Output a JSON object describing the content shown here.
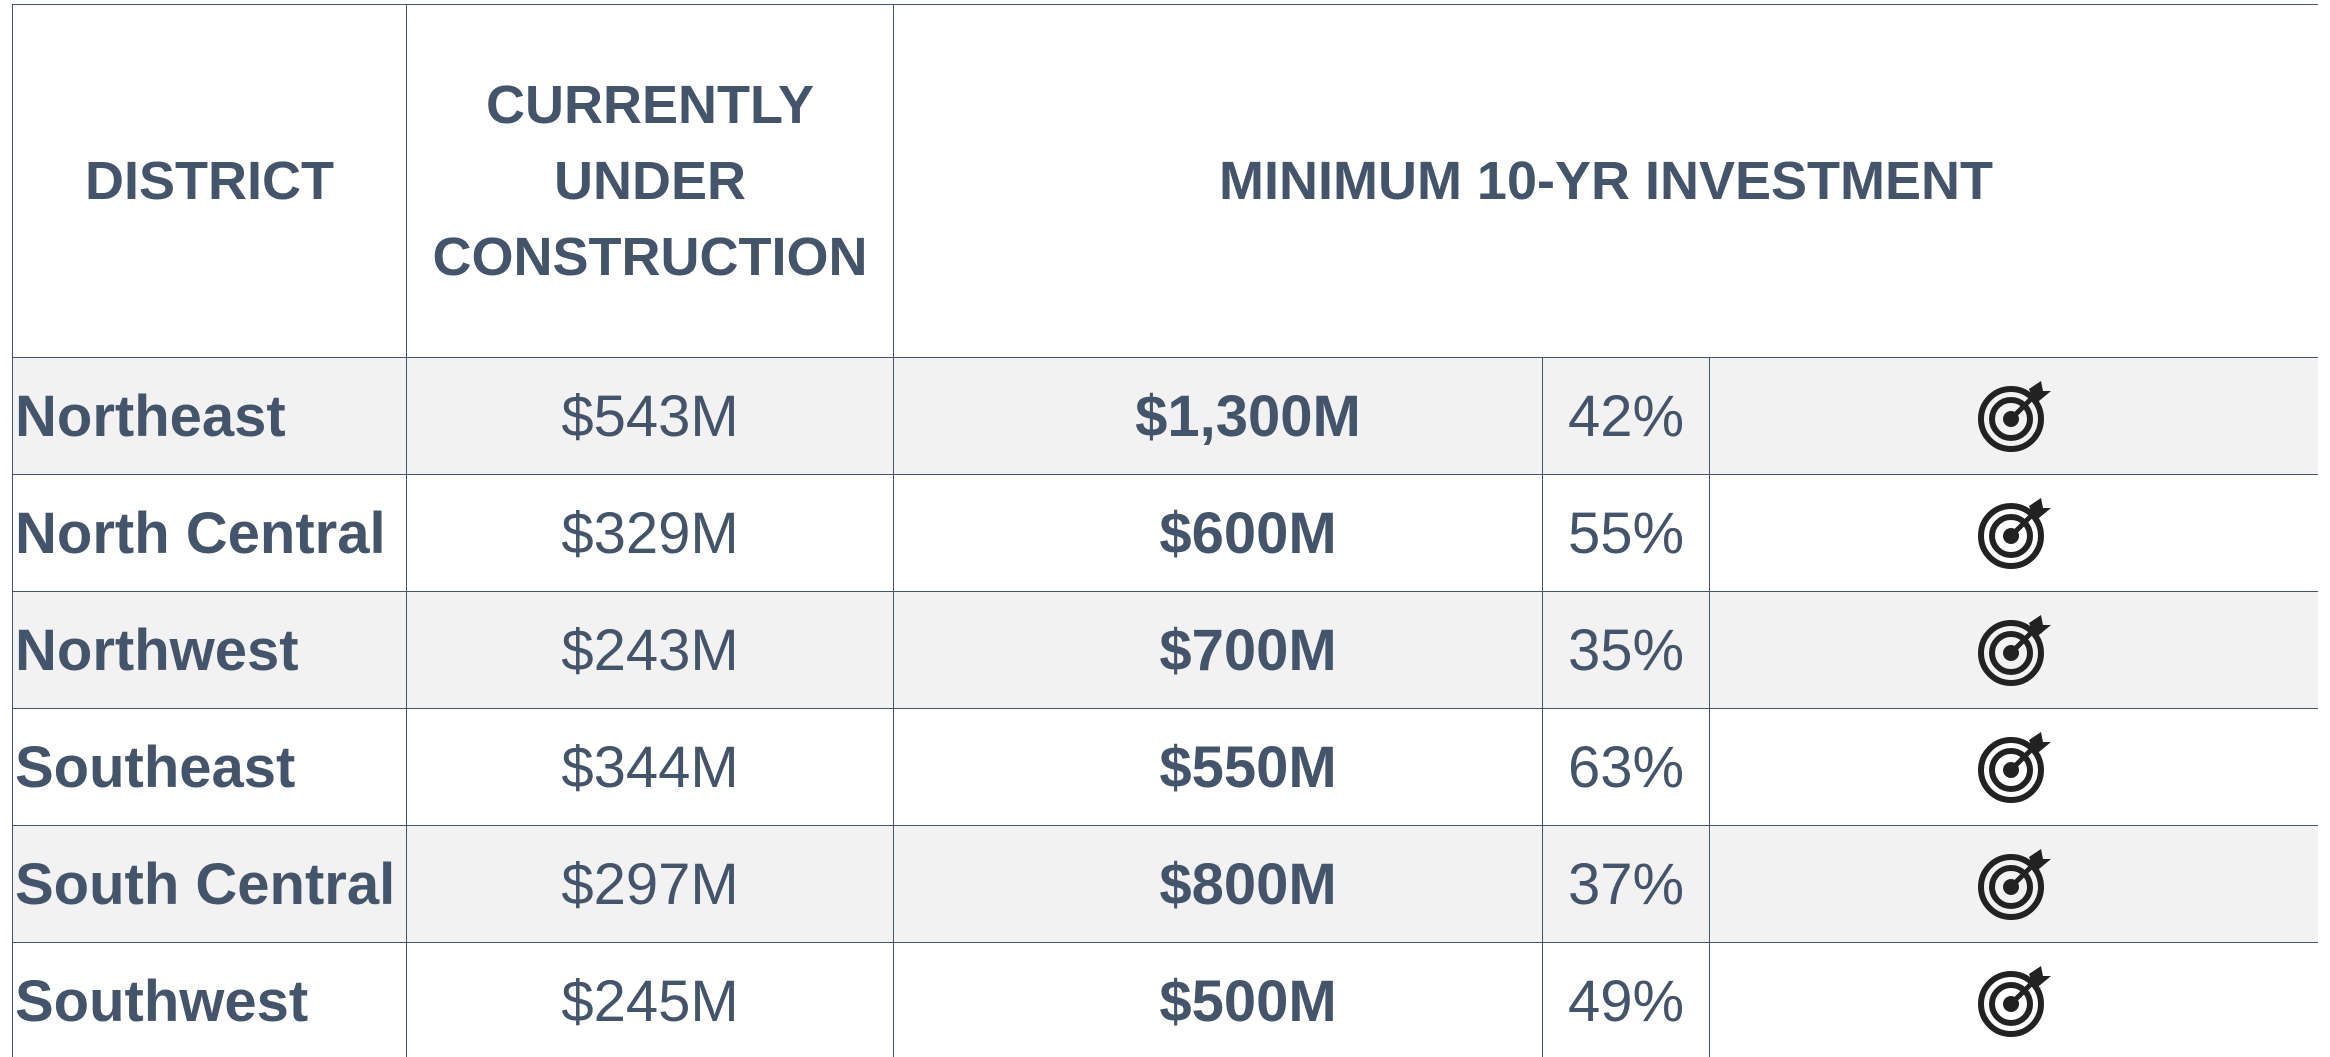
{
  "table": {
    "headers": [
      "DISTRICT",
      "CURRENTLY UNDER CONSTRUCTION",
      "MINIMUM 10-YR INVESTMENT"
    ],
    "rows": [
      [
        "Northeast",
        "$543M",
        "$1,300M",
        "42%"
      ],
      [
        "North Central",
        "$329M",
        "$600M",
        "55%"
      ],
      [
        "Northwest",
        "$243M",
        "$700M",
        "35%"
      ],
      [
        "Southeast",
        "$344M",
        "$550M",
        "63%"
      ],
      [
        "South Central",
        "$297M",
        "$800M",
        "37%"
      ],
      [
        "Southwest",
        "$245M",
        "$500M",
        "49%"
      ]
    ]
  }
}
